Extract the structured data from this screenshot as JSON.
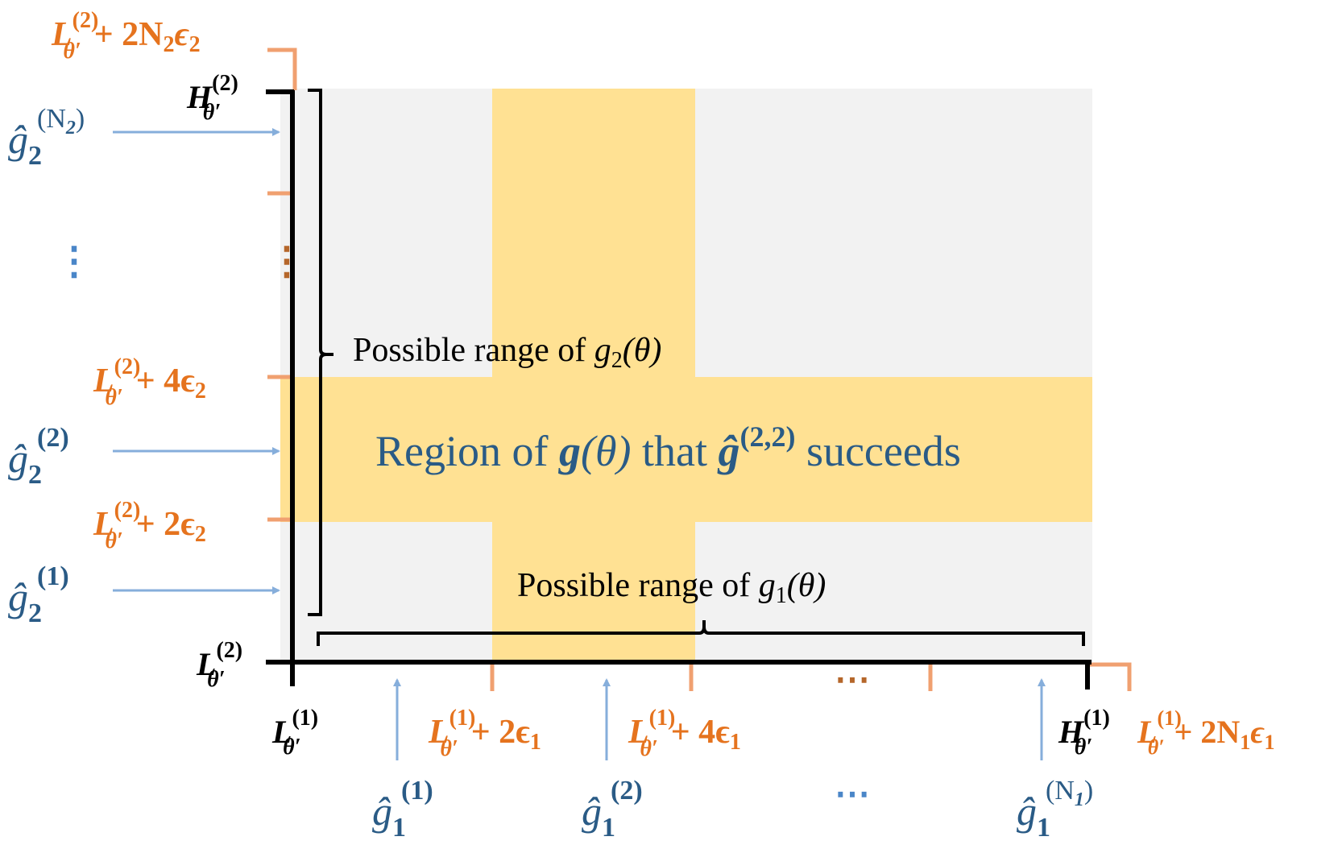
{
  "colors": {
    "axis": "#000000",
    "orange": "#E5731E",
    "orange_tick": "#F0A070",
    "blue_text": "#2A5B86",
    "blue_arrow": "#86AEDB",
    "yellow": "#FFE193",
    "grey": "#F2F2F2",
    "dot_orange": "#B5662A",
    "dot_blue": "#4A86C8"
  },
  "y_axis": {
    "top_label": {
      "base": "L",
      "sup": "(2)",
      "sub": "θ′",
      "tail": "+ 2N",
      "tail_sub": "2",
      "eps": "ϵ",
      "eps_sub": "2"
    },
    "high_label": {
      "base": "H",
      "sup": "(2)",
      "sub": "θ′"
    },
    "low_label": {
      "base": "L",
      "sup": "(2)",
      "sub": "θ′"
    },
    "label_4eps": {
      "base": "L",
      "sup": "(2)",
      "sub": "θ′",
      "tail": "+ 4ϵ",
      "tail_sub": "2"
    },
    "label_2eps": {
      "base": "L",
      "sup": "(2)",
      "sub": "θ′",
      "tail": "+ 2ϵ",
      "tail_sub": "2"
    },
    "estimates": [
      {
        "base": "ĝ",
        "sub": "2",
        "sup": "(N",
        "sup_sub": "2",
        "sup_close": ")"
      },
      {
        "base": "ĝ",
        "sub": "2",
        "sup": "(2)"
      },
      {
        "base": "ĝ",
        "sub": "2",
        "sup": "(1)"
      }
    ],
    "dots": "⋮"
  },
  "x_axis": {
    "low_label": {
      "base": "L",
      "sup": "(1)",
      "sub": "θ′"
    },
    "label_2eps": {
      "base": "L",
      "sup": "(1)",
      "sub": "θ′",
      "tail": "+ 2ϵ",
      "tail_sub": "1"
    },
    "label_4eps": {
      "base": "L",
      "sup": "(1)",
      "sub": "θ′",
      "tail": "+ 4ϵ",
      "tail_sub": "1"
    },
    "high_label": {
      "base": "H",
      "sup": "(1)",
      "sub": "θ′"
    },
    "end_label": {
      "base": "L",
      "sup": "(1)",
      "sub": "θ′",
      "tail": "+ 2N",
      "tail_sub": "1",
      "eps": "ϵ",
      "eps_sub": "1"
    },
    "estimates": [
      {
        "base": "ĝ",
        "sub": "1",
        "sup": "(1)"
      },
      {
        "base": "ĝ",
        "sub": "1",
        "sup": "(2)"
      },
      {
        "base": "ĝ",
        "sub": "1",
        "sup": "(N",
        "sup_sub": "1",
        "sup_close": ")"
      }
    ],
    "dots": "⋯"
  },
  "range_g2": {
    "text": "Possible range of ",
    "fn": "g",
    "fn_sub": "2",
    "arg": "(θ)"
  },
  "range_g1": {
    "text": "Possible range of ",
    "fn": "g",
    "fn_sub": "1",
    "arg": "(θ)"
  },
  "region": {
    "pre": "Region of ",
    "g": "g",
    "arg": "(θ)",
    "mid": " that ",
    "ghat": "ĝ",
    "sup": "(2,2)",
    "post": " succeeds"
  }
}
